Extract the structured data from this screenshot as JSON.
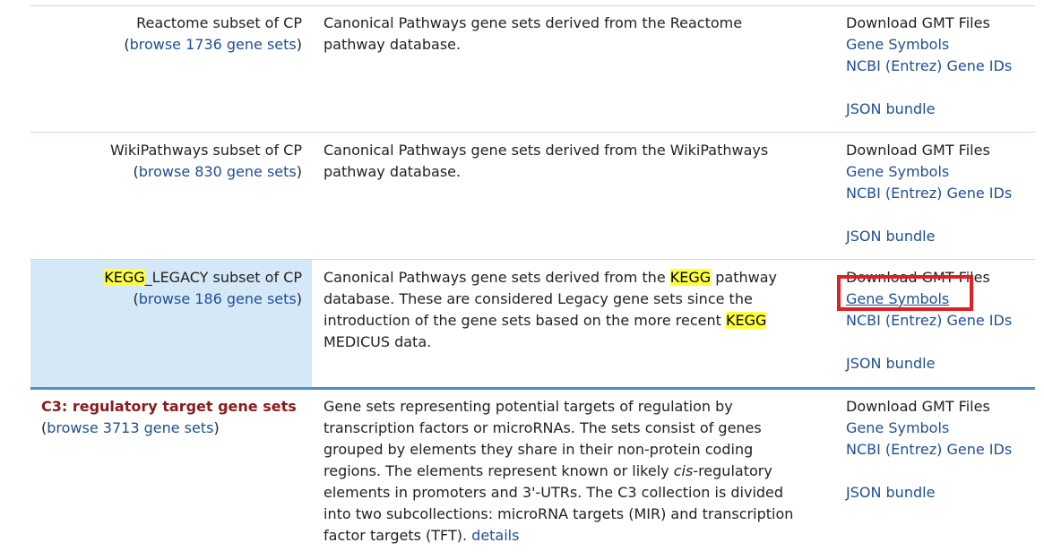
{
  "rows": [
    {
      "name_prefix": "Reactome subset of CP",
      "browse_open": "(",
      "browse_link": "browse 1736 gene sets",
      "browse_close": ")",
      "desc_lines": [
        "Canonical Pathways gene sets derived from the Reactome",
        "pathway database."
      ],
      "download_title": "Download GMT Files",
      "links": [
        "Gene Symbols",
        "NCBI (Entrez) Gene IDs",
        "JSON bundle"
      ]
    },
    {
      "name_prefix": "WikiPathways subset of CP",
      "browse_open": "(",
      "browse_link": "browse 830 gene sets",
      "browse_close": ")",
      "desc_lines": [
        "Canonical Pathways gene sets derived from the WikiPathways",
        "pathway database."
      ],
      "download_title": "Download GMT Files",
      "links": [
        "Gene Symbols",
        "NCBI (Entrez) Gene IDs",
        "JSON bundle"
      ]
    },
    {
      "name_highlight": "KEGG",
      "name_rest": "_LEGACY subset of CP",
      "browse_open": "(",
      "browse_link": "browse 186 gene sets",
      "browse_close": ")",
      "desc": {
        "l1_a": "Canonical Pathways gene sets derived from the ",
        "l1_hl": "KEGG",
        "l1_b": " pathway",
        "l2": "database. These are considered Legacy gene sets since the",
        "l3_a": "introduction of the gene sets based on the more recent ",
        "l3_hl": "KEGG",
        "l4": "MEDICUS data."
      },
      "download_title": "Download GMT Files",
      "links": [
        "Gene Symbols",
        "NCBI (Entrez) Gene IDs",
        "JSON bundle"
      ]
    },
    {
      "title": "C3: regulatory target gene sets",
      "browse_open": "(",
      "browse_link": "browse 3713 gene sets",
      "browse_close": ")",
      "desc": {
        "l1": "Gene sets representing potential targets of regulation by",
        "l2": "transcription factors or microRNAs. The sets consist of genes",
        "l3": "grouped by elements they share in their non-protein coding",
        "l4_a": "regions. The elements represent known or likely ",
        "l4_i": "cis",
        "l4_b": "-regulatory",
        "l5": "elements in promoters and 3'-UTRs. The C3 collection is divided",
        "l6": "into two subcollections: microRNA targets (MIR) and transcription",
        "l7_a": "factor targets (TFT). ",
        "l7_link": "details"
      },
      "download_title": "Download GMT Files",
      "links": [
        "Gene Symbols",
        "NCBI (Entrez) Gene IDs",
        "JSON bundle"
      ]
    }
  ],
  "colors": {
    "link": "#1f4e96",
    "highlight": "#ffff40",
    "row_highlight": "#d5e8f8",
    "c3_title": "#8b1a1a",
    "annotation_box": "#e01e24"
  }
}
